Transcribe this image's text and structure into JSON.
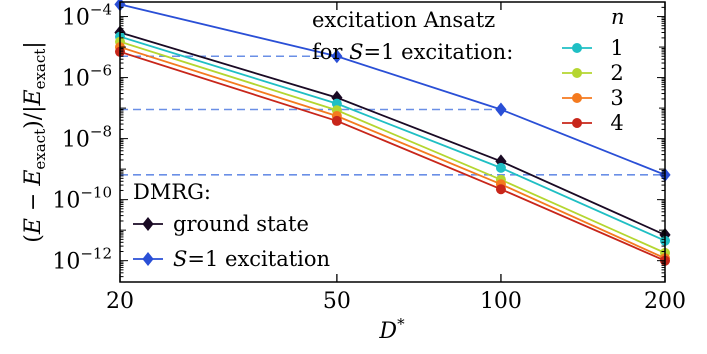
{
  "chart_data": {
    "type": "line",
    "xlabel": "D*",
    "ylabel": "(E − E_exact)/|E_exact|",
    "yscale": "log",
    "xlim": [
      20,
      200
    ],
    "ylim": [
      2e-13,
      0.0003
    ],
    "x_ticks": [
      20,
      50,
      100,
      200
    ],
    "x_tick_labels": [
      "20",
      "50",
      "100",
      "200"
    ],
    "y_ticks": [
      1e-12,
      1e-10,
      1e-08,
      1e-06,
      0.0001
    ],
    "y_tick_labels": [
      {
        "base": "10",
        "exp": "−12"
      },
      {
        "base": "10",
        "exp": "−10"
      },
      {
        "base": "10",
        "exp": "−8"
      },
      {
        "base": "10",
        "exp": "−6"
      },
      {
        "base": "10",
        "exp": "−4"
      }
    ],
    "grid": false,
    "reference_lines": [
      {
        "y": 5e-06,
        "x_range": [
          20,
          50
        ],
        "color": "#6a8fe6"
      },
      {
        "y": 9e-08,
        "x_range": [
          20,
          100
        ],
        "color": "#6a8fe6"
      },
      {
        "y": 6.5e-10,
        "x_range": [
          20,
          200
        ],
        "color": "#6a8fe6"
      }
    ],
    "series": [
      {
        "group": "dmrg",
        "name": "S = 1 excitation",
        "color": "#2a4fd6",
        "marker": "diamond",
        "x": [
          20,
          50,
          100,
          200
        ],
        "y": [
          0.00025,
          5e-06,
          9e-08,
          6.5e-10
        ]
      },
      {
        "group": "dmrg",
        "name": "ground state",
        "color": "#1a0a24",
        "marker": "diamond",
        "x": [
          20,
          50,
          100,
          200
        ],
        "y": [
          3e-05,
          2.2e-07,
          1.8e-09,
          7e-12
        ]
      },
      {
        "group": "ansatz",
        "name": "1",
        "color": "#1fbfc4",
        "marker": "circle",
        "x": [
          20,
          50,
          100,
          200
        ],
        "y": [
          2.2e-05,
          1.4e-07,
          1.1e-09,
          4.5e-12
        ]
      },
      {
        "group": "ansatz",
        "name": "2",
        "color": "#b5d630",
        "marker": "circle",
        "x": [
          20,
          50,
          100,
          200
        ],
        "y": [
          1.5e-05,
          8.5e-08,
          4.5e-10,
          1.8e-12
        ]
      },
      {
        "group": "ansatz",
        "name": "3",
        "color": "#f47a1f",
        "marker": "circle",
        "x": [
          20,
          50,
          100,
          200
        ],
        "y": [
          1e-05,
          5.5e-08,
          3.2e-10,
          1.2e-12
        ]
      },
      {
        "group": "ansatz",
        "name": "4",
        "color": "#c8261a",
        "marker": "circle",
        "x": [
          20,
          50,
          100,
          200
        ],
        "y": [
          7e-06,
          3.8e-08,
          2.2e-10,
          1e-12
        ]
      }
    ],
    "legend_ansatz": {
      "title_line1": "excitation Ansatz",
      "title_line2_prefix": "for ",
      "title_line2_S": "S",
      "title_line2_rest": "=1 excitation:",
      "n_header": "n",
      "placement": "top-right"
    },
    "legend_dmrg": {
      "title": "DMRG:",
      "placement": "bottom-left"
    }
  }
}
